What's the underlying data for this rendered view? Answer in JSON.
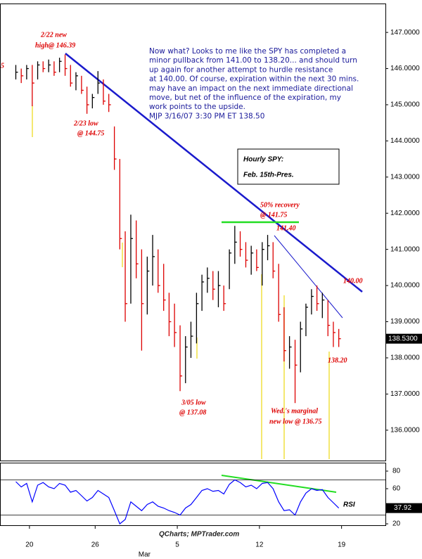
{
  "chart_data": [
    {
      "type": "ohlc",
      "title_lines": [
        "Hourly SPY:",
        "Feb. 15th-Pres."
      ],
      "commentary": [
        "Now what? Looks to me like the SPY has completed a",
        "minor pullback from 141.00 to 138.20... and should turn",
        "up again for another attempt to hurdle resistance",
        "at 140.00. Of course, expiration within the next 30 mins.",
        "may have an impact on the next immediate directional",
        "move, but net of the influence of the expiration, my",
        "work points to the upside.",
        "MJP  3/16/07 3:30 PM ET  138.50"
      ],
      "annotations": [
        "5",
        "2/22  new",
        "high@ 146.39",
        "2/23 low",
        "@ 144.75",
        "50% recovery",
        "@ 141.75",
        "141.40",
        "140.00",
        "138.20",
        "3/05 low",
        "@ 137.08",
        "Wed.'s marginal",
        "new low @ 136.75"
      ],
      "source": "QCharts; MPTrader.com",
      "x": [
        -0.83,
        -0.5,
        -0.17,
        0.17,
        0.5,
        0.83,
        1.17,
        1.5,
        1.83,
        2.17,
        2.5,
        2.83,
        3.17,
        3.5,
        3.83,
        4.17,
        4.5,
        4.83,
        5.17,
        5.5,
        5.83,
        6.17,
        6.5,
        6.83,
        7.17,
        7.5,
        7.83,
        8.17,
        8.5,
        8.83,
        9.17,
        9.5,
        9.83,
        10.17,
        10.5,
        10.83,
        11.17,
        11.5,
        11.83,
        12.17,
        12.5,
        12.83,
        13.17,
        13.5,
        13.83,
        14.17,
        14.5,
        14.83,
        15.17,
        15.5,
        15.83,
        16.17,
        16.5,
        16.83,
        17.17,
        17.5,
        17.83,
        18.17,
        18.5,
        18.83
      ],
      "high": [
        146.1,
        146.0,
        146.1,
        146.1,
        146.2,
        146.2,
        146.25,
        146.2,
        146.3,
        146.39,
        146.1,
        145.9,
        145.8,
        145.5,
        145.3,
        145.93,
        145.7,
        145.3,
        144.4,
        143.5,
        141.5,
        141.96,
        141.8,
        141.0,
        140.8,
        141.4,
        141.0,
        140.6,
        139.8,
        139.5,
        138.9,
        138.6,
        139.0,
        139.8,
        140.3,
        140.5,
        140.4,
        140.4,
        140.0,
        141.0,
        141.65,
        141.5,
        141.2,
        141.1,
        141.0,
        141.2,
        141.4,
        141.2,
        140.6,
        139.4,
        138.6,
        138.5,
        139.0,
        139.5,
        139.9,
        140.0,
        139.8,
        139.6,
        139.0,
        138.8
      ],
      "low": [
        145.7,
        145.6,
        145.7,
        144.96,
        145.7,
        145.9,
        145.9,
        145.8,
        145.9,
        145.8,
        145.5,
        145.4,
        145.3,
        144.75,
        144.9,
        145.3,
        145.0,
        144.8,
        143.2,
        141.0,
        139.0,
        139.5,
        140.2,
        138.2,
        139.2,
        140.0,
        139.8,
        139.3,
        138.6,
        138.3,
        137.08,
        137.3,
        138.0,
        138.4,
        139.3,
        139.8,
        139.6,
        139.4,
        139.3,
        139.9,
        140.6,
        140.8,
        140.5,
        140.3,
        140.4,
        140.0,
        140.7,
        140.2,
        139.0,
        137.9,
        137.7,
        136.75,
        137.6,
        138.6,
        139.2,
        139.3,
        139.1,
        138.6,
        138.3,
        138.3
      ],
      "close": [
        145.9,
        145.8,
        146.0,
        145.6,
        146.1,
        146.0,
        146.1,
        145.9,
        146.2,
        146.0,
        145.6,
        145.8,
        145.4,
        145.0,
        145.2,
        145.6,
        145.1,
        145.0,
        143.5,
        141.3,
        139.5,
        141.3,
        140.6,
        139.5,
        140.4,
        140.8,
        140.0,
        139.6,
        139.0,
        138.7,
        137.5,
        138.3,
        138.6,
        139.5,
        140.1,
        140.2,
        139.9,
        140.0,
        139.5,
        140.9,
        141.2,
        141.0,
        140.7,
        140.9,
        140.5,
        141.0,
        141.1,
        140.4,
        139.2,
        138.2,
        138.3,
        137.8,
        138.8,
        139.4,
        139.7,
        139.5,
        139.6,
        138.9,
        138.7,
        138.53
      ],
      "up_color": "#000000",
      "down_color": "#dd0000",
      "last_price": {
        "value": 138.53,
        "label": "138.5300"
      },
      "xlim": [
        -1.75,
        21.67
      ],
      "ylim": [
        135.16,
        147.78
      ],
      "yticks": [
        {
          "value": 136,
          "label": "136.0000"
        },
        {
          "value": 137,
          "label": "137.0000"
        },
        {
          "value": 138,
          "label": "138.0000"
        },
        {
          "value": 139,
          "label": "139.0000"
        },
        {
          "value": 140,
          "label": "140.0000"
        },
        {
          "value": 141,
          "label": "141.0000"
        },
        {
          "value": 142,
          "label": "142.0000"
        },
        {
          "value": 143,
          "label": "143.0000"
        },
        {
          "value": 144,
          "label": "144.0000"
        },
        {
          "value": 145,
          "label": "145.0000"
        },
        {
          "value": 146,
          "label": "146.0000"
        },
        {
          "value": 147,
          "label": "147.0000"
        }
      ]
    },
    {
      "type": "line",
      "series": [
        {
          "name": "RSI",
          "color": "#0000ff",
          "values": [
            68,
            62,
            66,
            45,
            64,
            67,
            62,
            60,
            66,
            64,
            56,
            58,
            52,
            46,
            50,
            58,
            54,
            50,
            35,
            20,
            25,
            45,
            40,
            35,
            42,
            45,
            40,
            38,
            35,
            33,
            30,
            38,
            42,
            50,
            58,
            60,
            57,
            58,
            54,
            65,
            70,
            67,
            62,
            64,
            60,
            66,
            67,
            60,
            45,
            35,
            36,
            30,
            45,
            55,
            60,
            58,
            59,
            50,
            44,
            37.92
          ]
        }
      ],
      "x": [
        -0.83,
        -0.5,
        -0.17,
        0.17,
        0.5,
        0.83,
        1.17,
        1.5,
        1.83,
        2.17,
        2.5,
        2.83,
        3.17,
        3.5,
        3.83,
        4.17,
        4.5,
        4.83,
        5.17,
        5.5,
        5.83,
        6.17,
        6.5,
        6.83,
        7.17,
        7.5,
        7.83,
        8.17,
        8.5,
        8.83,
        9.17,
        9.5,
        9.83,
        10.17,
        10.5,
        10.83,
        11.17,
        11.5,
        11.83,
        12.17,
        12.5,
        12.83,
        13.17,
        13.5,
        13.83,
        14.17,
        14.5,
        14.83,
        15.17,
        15.5,
        15.83,
        16.17,
        16.5,
        16.83,
        17.17,
        17.5,
        17.83,
        18.17,
        18.5,
        18.83
      ],
      "ref_lines": [
        30,
        70
      ],
      "xlim": [
        -1.75,
        21.67
      ],
      "xticks": [
        {
          "value": 0,
          "label": "20"
        },
        {
          "value": 4,
          "label": "26"
        },
        {
          "value": 9,
          "label": "5"
        },
        {
          "value": 14,
          "label": "12"
        },
        {
          "value": 19,
          "label": "19"
        }
      ],
      "month_label": {
        "value": 7,
        "label": "Mar"
      },
      "ylim": [
        18.4,
        88.8
      ],
      "yticks": [
        20,
        60,
        80
      ]
    }
  ]
}
